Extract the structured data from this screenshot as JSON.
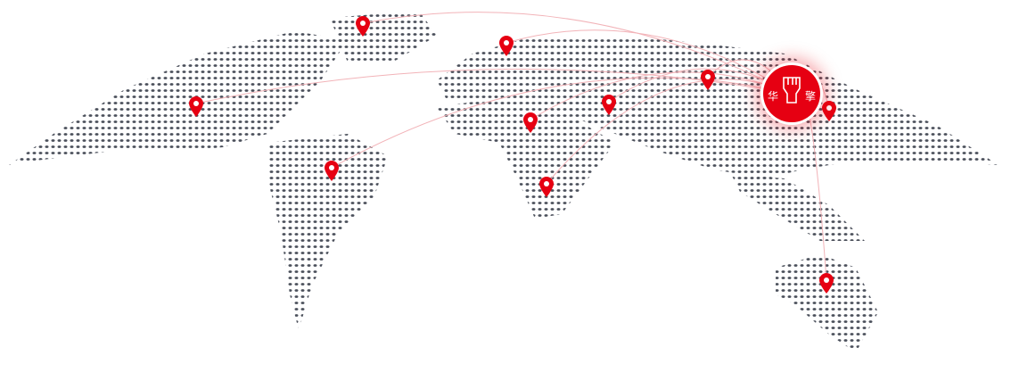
{
  "logo": {
    "left_char": "华",
    "right_char": "擎",
    "icon": "raised-fist-icon"
  },
  "colors": {
    "accent": "#e60012",
    "dots": "#4a4f5a",
    "arc": "#f2b3b8"
  },
  "pins": [
    "north-america",
    "europe-north",
    "europe",
    "south-america",
    "africa-north",
    "middle-east",
    "central-asia",
    "east-asia",
    "southern-africa",
    "australia"
  ]
}
